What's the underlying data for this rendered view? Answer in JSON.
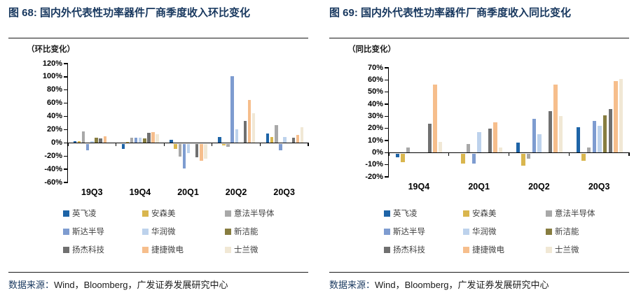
{
  "panels": [
    {
      "title": "图 68:  国内外代表性功率器件厂商季度收入环比变化",
      "unit_label": "（环比变化）",
      "source_label": "数据来源：",
      "source_text": "Wind，Bloomberg，广发证券发展研究中心"
    },
    {
      "title": "图 69:  国内外代表性功率器件厂商季度收入同比变化",
      "unit_label": "（同比变化）",
      "source_label": "数据来源：",
      "source_text": "Wind，Bloomberg，广发证券发展研究中心"
    }
  ],
  "chart_data": [
    {
      "type": "bar",
      "title": "国内外代表性功率器件厂商季度收入环比变化",
      "unit": "环比变化 (%)",
      "categories": [
        "19Q3",
        "19Q4",
        "20Q1",
        "20Q2",
        "20Q3"
      ],
      "series": [
        {
          "name": "英飞凌",
          "color": "#1E64A7",
          "values": [
            3,
            -8,
            5,
            9,
            14
          ]
        },
        {
          "name": "安森美",
          "color": "#D9B64E",
          "values": [
            2,
            1,
            -8,
            -2,
            9
          ]
        },
        {
          "name": "意法半导体",
          "color": "#A8A8A8",
          "values": [
            17,
            8,
            -19,
            -4,
            27
          ]
        },
        {
          "name": "斯达半导",
          "color": "#7E9CD0",
          "values": [
            -10,
            8,
            -37,
            101,
            -10
          ]
        },
        {
          "name": "华润微",
          "color": "#BDD2EC",
          "values": [
            3,
            8,
            -14,
            20,
            9
          ]
        },
        {
          "name": "新洁能",
          "color": "#877D40",
          "values": [
            8,
            7,
            null,
            null,
            null
          ]
        },
        {
          "name": "扬杰科技",
          "color": "#707070",
          "values": [
            7,
            15,
            -20,
            33,
            8
          ]
        },
        {
          "name": "捷捷微电",
          "color": "#F6BE8C",
          "values": [
            10,
            16,
            -26,
            65,
            12
          ]
        },
        {
          "name": "士兰微",
          "color": "#F1E8D5",
          "values": [
            null,
            13,
            -22,
            45,
            24
          ]
        }
      ],
      "ylim": [
        -60,
        120
      ],
      "yticks": [
        "120%",
        "100%",
        "80%",
        "60%",
        "40%",
        "20%",
        "0%",
        "-20%",
        "-40%",
        "-60%"
      ],
      "grid": false,
      "legend_position": "bottom"
    },
    {
      "type": "bar",
      "title": "国内外代表性功率器件厂商季度收入同比变化",
      "unit": "同比变化 (%)",
      "categories": [
        "19Q4",
        "20Q1",
        "20Q2",
        "20Q3"
      ],
      "series": [
        {
          "name": "英飞凌",
          "color": "#1E64A7",
          "values": [
            -3,
            null,
            8,
            21
          ]
        },
        {
          "name": "安森美",
          "color": "#D9B64E",
          "values": [
            -7,
            -8,
            -10,
            -6
          ]
        },
        {
          "name": "意法半导体",
          "color": "#A8A8A8",
          "values": [
            4,
            7,
            -4,
            4
          ]
        },
        {
          "name": "斯达半导",
          "color": "#7E9CD0",
          "values": [
            null,
            -8,
            28,
            26
          ]
        },
        {
          "name": "华润微",
          "color": "#BDD2EC",
          "values": [
            null,
            17,
            15,
            22
          ]
        },
        {
          "name": "新洁能",
          "color": "#877D40",
          "values": [
            null,
            null,
            null,
            31
          ]
        },
        {
          "name": "扬杰科技",
          "color": "#707070",
          "values": [
            24,
            20,
            34,
            36
          ]
        },
        {
          "name": "捷捷微电",
          "color": "#F6BE8C",
          "values": [
            56,
            25,
            56,
            59
          ]
        },
        {
          "name": "士兰微",
          "color": "#F1E8D5",
          "values": [
            9,
            4,
            30,
            61
          ]
        }
      ],
      "ylim": [
        -20,
        70
      ],
      "yticks": [
        "70%",
        "60%",
        "50%",
        "40%",
        "30%",
        "20%",
        "10%",
        "0%",
        "-10%",
        "-20%"
      ],
      "grid": false,
      "legend_position": "bottom"
    }
  ]
}
